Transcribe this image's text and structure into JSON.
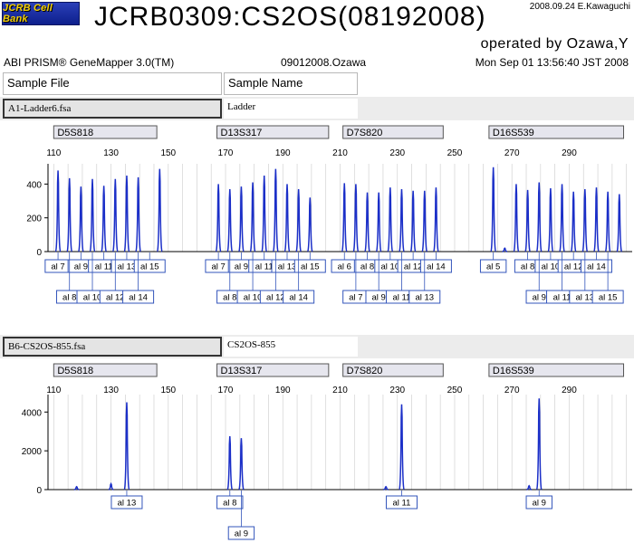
{
  "header": {
    "logo_text": "JCRB Cell Bank",
    "title": "JCRB0309:CS2OS(08192008)",
    "credit": "2008.09.24 E.Kawaguchi",
    "operator": "operated by Ozawa,Y",
    "app_name": "ABI PRISM® GeneMapper 3.0(TM)",
    "file_id": "09012008.Ozawa",
    "timestamp": "Mon Sep 01 13:56:40 JST 2008",
    "col_sample_file": "Sample File",
    "col_sample_name": "Sample Name"
  },
  "chart_data": [
    {
      "type": "line",
      "title": "",
      "sample_file": "A1-Ladder6.fsa",
      "sample_name": "Ladder",
      "xlabel": "",
      "ylabel": "",
      "xlim": [
        108,
        312
      ],
      "ylim": [
        0,
        520
      ],
      "x_ticks": [
        110,
        130,
        150,
        170,
        190,
        210,
        230,
        250,
        270,
        290
      ],
      "y_ticks": [
        400,
        200,
        0
      ],
      "grid": true,
      "markers": [
        {
          "label": "D5S818",
          "start": 110,
          "end": 146
        },
        {
          "label": "D13S317",
          "start": 167,
          "end": 206
        },
        {
          "label": "D7S820",
          "start": 211,
          "end": 246
        },
        {
          "label": "D16S539",
          "start": 262,
          "end": 309
        }
      ],
      "peaks": [
        {
          "x": 111.5,
          "y": 480
        },
        {
          "x": 115.5,
          "y": 435
        },
        {
          "x": 119.5,
          "y": 385
        },
        {
          "x": 123.5,
          "y": 430
        },
        {
          "x": 127.5,
          "y": 390
        },
        {
          "x": 131.5,
          "y": 430
        },
        {
          "x": 135.5,
          "y": 450
        },
        {
          "x": 139.5,
          "y": 440
        },
        {
          "x": 147.0,
          "y": 490
        },
        {
          "x": 167.5,
          "y": 400
        },
        {
          "x": 171.5,
          "y": 370
        },
        {
          "x": 175.5,
          "y": 385
        },
        {
          "x": 179.5,
          "y": 410
        },
        {
          "x": 183.5,
          "y": 450
        },
        {
          "x": 187.5,
          "y": 490
        },
        {
          "x": 191.5,
          "y": 400
        },
        {
          "x": 195.5,
          "y": 370
        },
        {
          "x": 199.5,
          "y": 320
        },
        {
          "x": 211.5,
          "y": 405
        },
        {
          "x": 215.5,
          "y": 400
        },
        {
          "x": 219.5,
          "y": 350
        },
        {
          "x": 223.5,
          "y": 350
        },
        {
          "x": 227.5,
          "y": 380
        },
        {
          "x": 231.5,
          "y": 370
        },
        {
          "x": 235.5,
          "y": 360
        },
        {
          "x": 239.5,
          "y": 360
        },
        {
          "x": 243.5,
          "y": 380
        },
        {
          "x": 263.5,
          "y": 500
        },
        {
          "x": 267.5,
          "y": 20
        },
        {
          "x": 271.5,
          "y": 400
        },
        {
          "x": 275.5,
          "y": 365
        },
        {
          "x": 279.5,
          "y": 410
        },
        {
          "x": 283.5,
          "y": 375
        },
        {
          "x": 287.5,
          "y": 400
        },
        {
          "x": 291.5,
          "y": 355
        },
        {
          "x": 295.5,
          "y": 370
        },
        {
          "x": 299.5,
          "y": 380
        },
        {
          "x": 303.5,
          "y": 355
        },
        {
          "x": 307.5,
          "y": 340
        }
      ],
      "allele_labels": [
        {
          "text": "al 7",
          "x": 111.5,
          "row": 1
        },
        {
          "text": "al 9",
          "x": 119.5,
          "row": 1
        },
        {
          "text": "al 11",
          "x": 127.5,
          "row": 1
        },
        {
          "text": "al 13",
          "x": 135.5,
          "row": 1
        },
        {
          "text": "al 15",
          "x": 143.5,
          "row": 1
        },
        {
          "text": "al 8",
          "x": 115.5,
          "row": 2
        },
        {
          "text": "al 10",
          "x": 123.5,
          "row": 2
        },
        {
          "text": "al 12",
          "x": 131.5,
          "row": 2
        },
        {
          "text": "al 14",
          "x": 139.5,
          "row": 2
        },
        {
          "text": "al 7",
          "x": 167.5,
          "row": 1
        },
        {
          "text": "al 9",
          "x": 175.5,
          "row": 1
        },
        {
          "text": "al 11",
          "x": 183.5,
          "row": 1
        },
        {
          "text": "al 13",
          "x": 191.5,
          "row": 1
        },
        {
          "text": "al 15",
          "x": 199.5,
          "row": 1
        },
        {
          "text": "al 8",
          "x": 171.5,
          "row": 2
        },
        {
          "text": "al 10",
          "x": 179.5,
          "row": 2
        },
        {
          "text": "al 12",
          "x": 187.5,
          "row": 2
        },
        {
          "text": "al 14",
          "x": 195.5,
          "row": 2
        },
        {
          "text": "al 6",
          "x": 211.5,
          "row": 1
        },
        {
          "text": "al 8",
          "x": 219.5,
          "row": 1
        },
        {
          "text": "al 10",
          "x": 227.5,
          "row": 1
        },
        {
          "text": "al 12",
          "x": 235.5,
          "row": 1
        },
        {
          "text": "al 14",
          "x": 243.5,
          "row": 1
        },
        {
          "text": "al 7",
          "x": 215.5,
          "row": 2
        },
        {
          "text": "al 9",
          "x": 223.5,
          "row": 2
        },
        {
          "text": "al 11",
          "x": 231.5,
          "row": 2
        },
        {
          "text": "al 13",
          "x": 239.5,
          "row": 2
        },
        {
          "text": "al 5",
          "x": 263.5,
          "row": 1
        },
        {
          "text": "al 8",
          "x": 275.5,
          "row": 1
        },
        {
          "text": "al 10",
          "x": 283.5,
          "row": 1
        },
        {
          "text": "al 12",
          "x": 291.5,
          "row": 1
        },
        {
          "text": "al 14",
          "x": 299.5,
          "row": 1
        },
        {
          "text": "al 9",
          "x": 279.5,
          "row": 2
        },
        {
          "text": "al 11",
          "x": 287.5,
          "row": 2
        },
        {
          "text": "al 13",
          "x": 295.5,
          "row": 2
        },
        {
          "text": "al 15",
          "x": 303.5,
          "row": 2
        }
      ]
    },
    {
      "type": "line",
      "title": "",
      "sample_file": "B6-CS2OS-855.fsa",
      "sample_name": "CS2OS-855",
      "xlabel": "",
      "ylabel": "",
      "xlim": [
        108,
        312
      ],
      "ylim": [
        0,
        4900
      ],
      "x_ticks": [
        110,
        130,
        150,
        170,
        190,
        210,
        230,
        250,
        270,
        290
      ],
      "y_ticks": [
        4000,
        2000,
        0
      ],
      "grid": true,
      "markers": [
        {
          "label": "D5S818",
          "start": 110,
          "end": 146
        },
        {
          "label": "D13S317",
          "start": 167,
          "end": 206
        },
        {
          "label": "D7S820",
          "start": 211,
          "end": 246
        },
        {
          "label": "D16S539",
          "start": 262,
          "end": 309
        }
      ],
      "peaks": [
        {
          "x": 135.5,
          "y": 4500
        },
        {
          "x": 171.5,
          "y": 2750
        },
        {
          "x": 175.5,
          "y": 2650
        },
        {
          "x": 231.5,
          "y": 4400
        },
        {
          "x": 279.5,
          "y": 4700
        },
        {
          "x": 118.0,
          "y": 150
        },
        {
          "x": 130.0,
          "y": 300
        },
        {
          "x": 226.0,
          "y": 150
        },
        {
          "x": 276.0,
          "y": 200
        }
      ],
      "allele_labels": [
        {
          "text": "al 13",
          "x": 135.5,
          "row": 1
        },
        {
          "text": "al 8",
          "x": 171.5,
          "row": 1
        },
        {
          "text": "al 9",
          "x": 175.5,
          "row": 2
        },
        {
          "text": "al 11",
          "x": 231.5,
          "row": 1
        },
        {
          "text": "al 9",
          "x": 279.5,
          "row": 1
        }
      ]
    }
  ]
}
